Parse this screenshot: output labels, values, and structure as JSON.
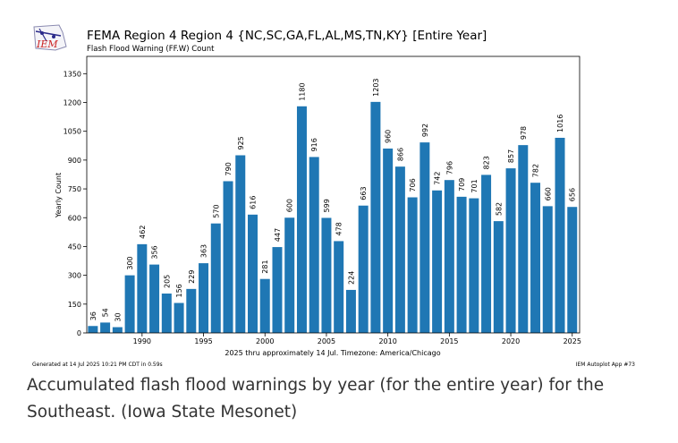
{
  "chart_data": {
    "type": "bar",
    "title": "FEMA Region 4 Region 4 {NC,SC,GA,FL,AL,MS,TN,KY} [Entire Year]",
    "subtitle": "Flash Flood Warning (FF.W) Count",
    "xlabel": "2025 thru approximately 14 Jul. Timezone: America/Chicago",
    "ylabel": "Yearly Count",
    "x": [
      1986,
      1987,
      1988,
      1989,
      1990,
      1991,
      1992,
      1993,
      1994,
      1995,
      1996,
      1997,
      1998,
      1999,
      2000,
      2001,
      2002,
      2003,
      2004,
      2005,
      2006,
      2007,
      2008,
      2009,
      2010,
      2011,
      2012,
      2013,
      2014,
      2015,
      2016,
      2017,
      2018,
      2019,
      2020,
      2021,
      2022,
      2023,
      2024,
      2025
    ],
    "values": [
      36,
      54,
      30,
      300,
      462,
      356,
      205,
      156,
      229,
      363,
      570,
      790,
      925,
      616,
      281,
      447,
      600,
      1180,
      916,
      599,
      478,
      224,
      663,
      1203,
      960,
      866,
      706,
      992,
      742,
      796,
      709,
      701,
      823,
      582,
      857,
      978,
      782,
      660,
      1016,
      656
    ],
    "x_ticks": [
      "1990",
      "1995",
      "2000",
      "2005",
      "2010",
      "2015",
      "2020",
      "2025"
    ],
    "y_ticks": [
      "0",
      "150",
      "300",
      "450",
      "600",
      "750",
      "900",
      "1050",
      "1200",
      "1350"
    ],
    "ylim": [
      0,
      1440
    ],
    "xlim": [
      1985.5,
      2025.6
    ],
    "bar_color": "#1f77b4",
    "grid": false
  },
  "footer": {
    "generated": "Generated at 14 Jul 2025 10:21 PM CDT in 0.59s",
    "app": "IEM Autoplot App #73"
  },
  "logo": {
    "text": "IEM"
  },
  "caption": "Accumulated flash flood warnings by year (for the entire year) for the Southeast. (Iowa State Mesonet)"
}
